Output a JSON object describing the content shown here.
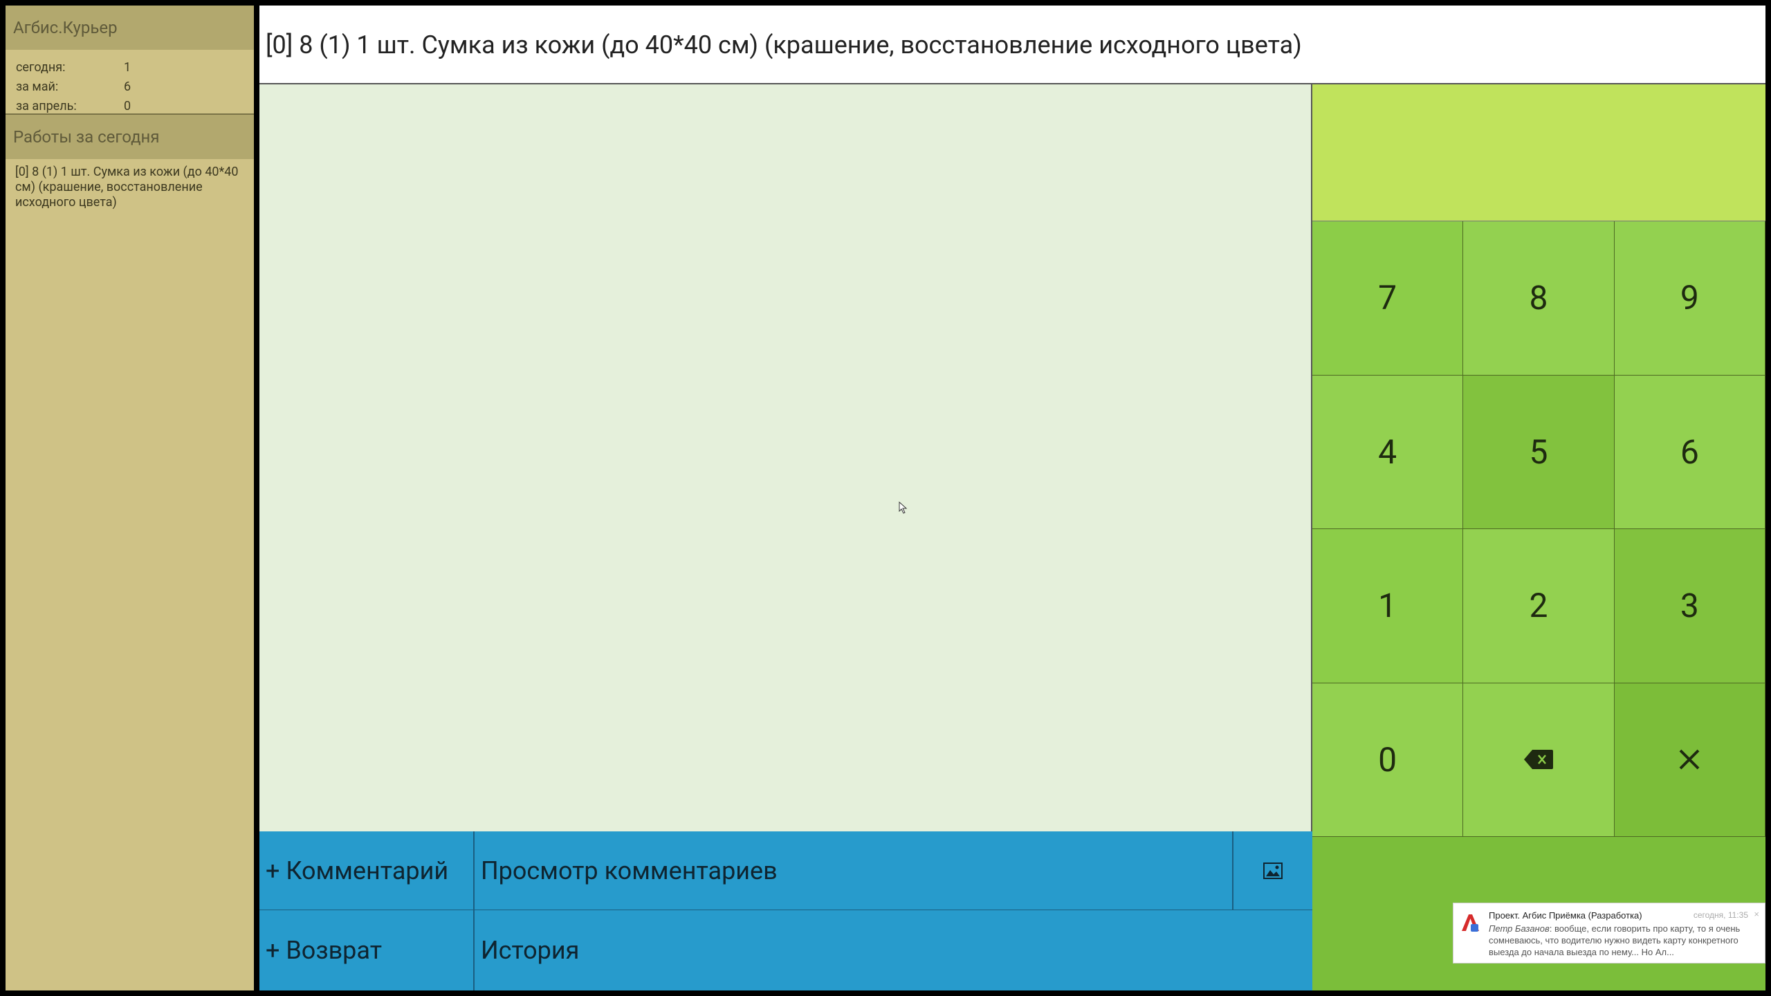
{
  "sidebar": {
    "app_title": "Агбис.Курьер",
    "stats": [
      {
        "label": "сегодня:",
        "value": "1"
      },
      {
        "label": "за май:",
        "value": "6"
      },
      {
        "label": "за апрель:",
        "value": "0"
      }
    ],
    "works_heading": "Работы за сегодня",
    "works": [
      "[0] 8 (1) 1 шт. Сумка из кожи (до 40*40 см) (крашение, восстановление исходного цвета)"
    ]
  },
  "header": {
    "title": "[0] 8 (1) 1 шт. Сумка из кожи (до 40*40 см) (крашение, восстановление исходного цвета)"
  },
  "display": {
    "value": ""
  },
  "keypad": {
    "keys": [
      "7",
      "8",
      "9",
      "4",
      "5",
      "6",
      "1",
      "2",
      "3",
      "0"
    ],
    "backspace_icon": "backspace-icon",
    "clear_icon": "close-icon"
  },
  "buttons": {
    "add_comment": "+ Комментарий",
    "view_comments": "Просмотр комментариев",
    "add_return": "+ Возврат",
    "history": "История",
    "image_icon": "image-icon"
  },
  "notification": {
    "title": "Проект. Агбис Приёмка (Разработка)",
    "time": "сегодня, 11:35",
    "author": "Петр Базанов",
    "text": ": вообще, если говорить про карту, то я очень сомневаюсь, что водителю нужно видеть карту конкретного выезда до начала выезда по нему... Но Ал...",
    "close": "×"
  },
  "colors": {
    "sidebar_bg": "#cfc286",
    "sidebar_header": "#b2a86e",
    "work_area": "#e5f0db",
    "display": "#c0e35c",
    "keypad_green": "#8ccd48",
    "button_blue": "#279bcc"
  }
}
